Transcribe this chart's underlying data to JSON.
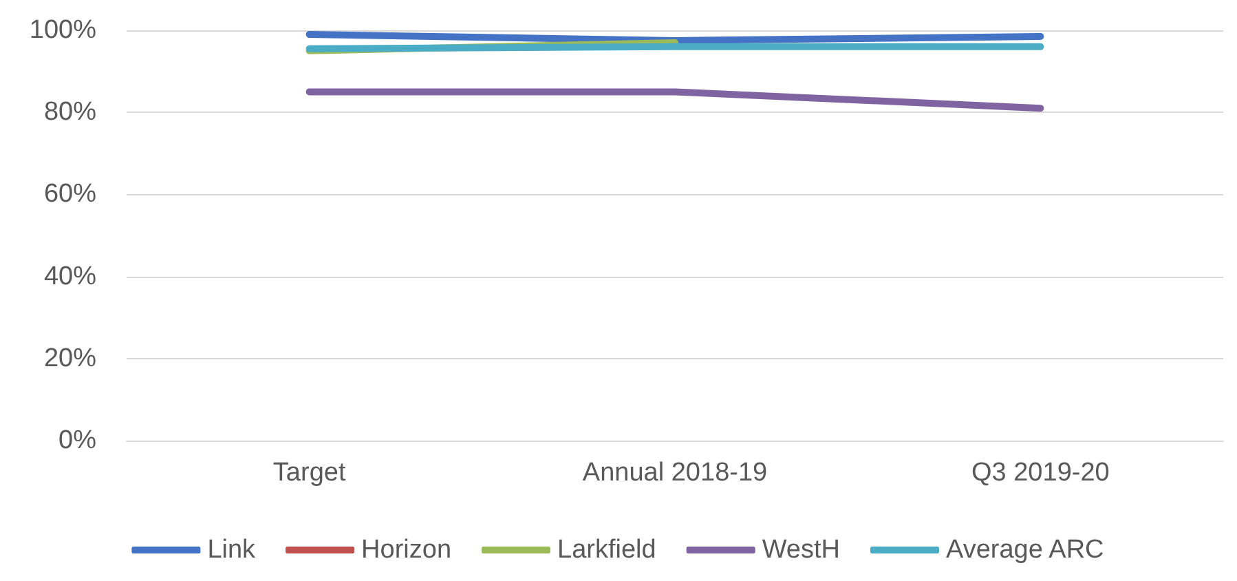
{
  "chart_data": {
    "type": "line",
    "categories": [
      "Target",
      "Annual 2018-19",
      "Q3 2019-20"
    ],
    "series": [
      {
        "name": "Link",
        "color": "#4472c4",
        "values": [
          99,
          97.5,
          98.5
        ]
      },
      {
        "name": "Horizon",
        "color": "#c0504d",
        "values": [
          null,
          null,
          null
        ]
      },
      {
        "name": "Larkfield",
        "color": "#9bbb59",
        "values": [
          95,
          97,
          null
        ]
      },
      {
        "name": "WestH",
        "color": "#8064a2",
        "values": [
          85,
          85,
          81
        ]
      },
      {
        "name": "Average ARC",
        "color": "#4bacc6",
        "values": [
          95.5,
          96,
          96
        ]
      }
    ],
    "ylim": [
      0,
      100
    ],
    "yticks": [
      {
        "value": 0,
        "label": "0%"
      },
      {
        "value": 20,
        "label": "20%"
      },
      {
        "value": 40,
        "label": "40%"
      },
      {
        "value": 60,
        "label": "60%"
      },
      {
        "value": 80,
        "label": "80%"
      },
      {
        "value": 100,
        "label": "100%"
      }
    ],
    "grid": "y",
    "legend": "bottom",
    "marker": "none"
  }
}
